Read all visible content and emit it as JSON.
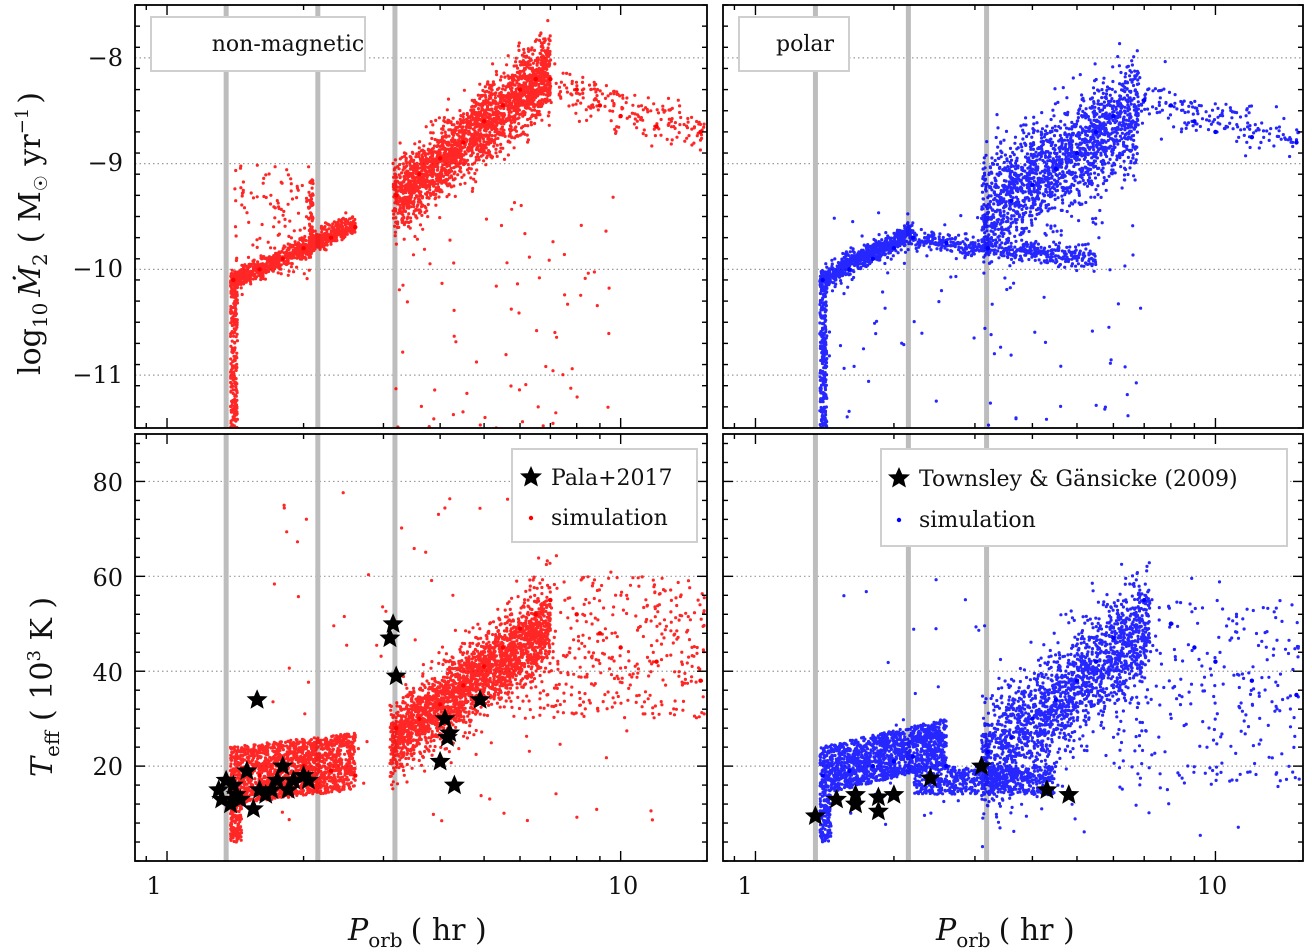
{
  "figure": {
    "x_tick_labels": [
      "1",
      "10"
    ],
    "x_label_main": "P",
    "x_label_sub": "orb",
    "x_label_unit": "( hr )",
    "top_y_label_main": "log",
    "top_y_label_sub": "10",
    "top_y_label_symbol": "Ṁ",
    "top_y_label_symbol_sub": "2",
    "top_y_label_unit": "( M",
    "top_y_label_unit_sun": "☉",
    "top_y_label_unit_rest": " yr",
    "top_y_label_unit_exp": "−1",
    "top_y_label_unit_close": ")",
    "bottom_y_label_main": "T",
    "bottom_y_label_sub": "eff",
    "bottom_y_label_unit": "( 10",
    "bottom_y_label_unit_exp": "3",
    "bottom_y_label_unit_rest": " K )",
    "top_y_tick_labels": [
      "−8",
      "−9",
      "−10",
      "−11"
    ],
    "bottom_y_tick_labels": [
      "20",
      "40",
      "60",
      "80"
    ],
    "vertical_lines_hr": [
      1.35,
      2.15,
      3.18
    ],
    "colors": {
      "nonmagnetic": "#ff0000",
      "polar": "#0000ff",
      "observed": "#000000",
      "guide": "#bdbdbd",
      "grid": "#999999"
    }
  },
  "chart_data": [
    {
      "type": "scatter",
      "panel": "top-left",
      "label": "non-magnetic",
      "xscale": "log",
      "xlim": [
        0.85,
        15.5
      ],
      "ylim": [
        -11.5,
        -7.5
      ],
      "grid_y": true,
      "series": [
        {
          "color": "#ff0000",
          "x": [
            1.4,
            1.6,
            1.8,
            2.0,
            2.3,
            2.6,
            3.2,
            3.6,
            4.0,
            4.5,
            5.0,
            5.5,
            6.0,
            6.5,
            7.0,
            8.0,
            9.0,
            10.0,
            12.0,
            15.0
          ],
          "values": [
            -10.1,
            -10.0,
            -9.9,
            -9.8,
            -9.7,
            -9.6,
            -9.3,
            -9.1,
            -8.95,
            -8.8,
            -8.6,
            -8.45,
            -8.3,
            -8.2,
            -8.2,
            -8.3,
            -8.45,
            -8.55,
            -8.65,
            -8.7
          ]
        }
      ]
    },
    {
      "type": "scatter",
      "panel": "top-right",
      "label": "polar",
      "xscale": "log",
      "xlim": [
        0.85,
        15.5
      ],
      "ylim": [
        -11.5,
        -7.5
      ],
      "grid_y": true,
      "series": [
        {
          "color": "#0000ff",
          "x": [
            1.4,
            1.6,
            1.8,
            2.0,
            2.2,
            2.6,
            3.2,
            3.6,
            4.0,
            4.5,
            5.0,
            5.5,
            6.0,
            7.0,
            8.0,
            9.0,
            10.0,
            12.0,
            15.0
          ],
          "values": [
            -10.1,
            -10.0,
            -9.9,
            -9.8,
            -9.7,
            -9.75,
            -9.8,
            -9.35,
            -9.2,
            -9.05,
            -8.9,
            -8.7,
            -8.55,
            -8.4,
            -8.45,
            -8.6,
            -8.7,
            -8.75,
            -8.8
          ]
        }
      ]
    },
    {
      "type": "scatter",
      "panel": "bottom-left",
      "xscale": "log",
      "xlim": [
        0.85,
        15.5
      ],
      "ylim": [
        0,
        90
      ],
      "grid_y": true,
      "legend": {
        "position": "top-right",
        "entries": [
          "Pala+2017",
          "simulation"
        ]
      },
      "series": [
        {
          "name": "simulation",
          "color": "#ff0000",
          "x": [
            1.4,
            1.6,
            1.8,
            2.0,
            2.3,
            2.6,
            3.2,
            3.6,
            4.0,
            4.5,
            5.0,
            5.5,
            6.0,
            6.5,
            7.0,
            8.0,
            9.0,
            10.0,
            12.0,
            15.0
          ],
          "values": [
            17,
            18,
            19,
            20,
            19,
            18,
            28,
            30,
            33,
            37,
            41,
            45,
            49,
            52,
            55,
            52,
            48,
            45,
            42,
            38
          ]
        },
        {
          "name": "Pala+2017",
          "color": "#000000",
          "x": [
            1.3,
            1.32,
            1.35,
            1.38,
            1.4,
            1.42,
            1.45,
            1.5,
            1.55,
            1.6,
            1.65,
            1.7,
            1.75,
            1.8,
            1.85,
            1.9,
            2.0,
            2.05,
            1.58,
            3.1,
            3.15,
            3.2,
            4.0,
            4.1,
            4.15,
            4.2,
            4.3,
            4.9
          ],
          "values": [
            15,
            13,
            17,
            12,
            16,
            14,
            13,
            19,
            11,
            15,
            14,
            15,
            17,
            20,
            15,
            17,
            18,
            17,
            34,
            47,
            50,
            39,
            21,
            30,
            26,
            27,
            16,
            34
          ]
        }
      ]
    },
    {
      "type": "scatter",
      "panel": "bottom-right",
      "xscale": "log",
      "xlim": [
        0.85,
        15.5
      ],
      "ylim": [
        0,
        90
      ],
      "grid_y": true,
      "legend": {
        "position": "top-right",
        "entries": [
          "Townsley & Gänsicke (2009)",
          "simulation"
        ]
      },
      "series": [
        {
          "name": "simulation",
          "color": "#0000ff",
          "x": [
            1.4,
            1.6,
            1.8,
            2.0,
            2.2,
            2.6,
            3.2,
            3.6,
            4.0,
            4.5,
            5.0,
            5.5,
            6.0,
            7.0,
            8.0,
            9.0,
            10.0,
            12.0,
            15.0
          ],
          "values": [
            18,
            19,
            20,
            21,
            22,
            20,
            23,
            26,
            30,
            34,
            38,
            42,
            47,
            55,
            50,
            45,
            42,
            38,
            35
          ]
        },
        {
          "name": "Townsley & Gänsicke (2009)",
          "color": "#000000",
          "x": [
            1.35,
            1.5,
            1.65,
            1.65,
            1.85,
            1.85,
            2.0,
            2.4,
            3.1,
            4.3,
            4.8
          ],
          "values": [
            9.5,
            13,
            12,
            14,
            13.5,
            10.5,
            14,
            17.5,
            20,
            15,
            14
          ]
        }
      ]
    }
  ]
}
